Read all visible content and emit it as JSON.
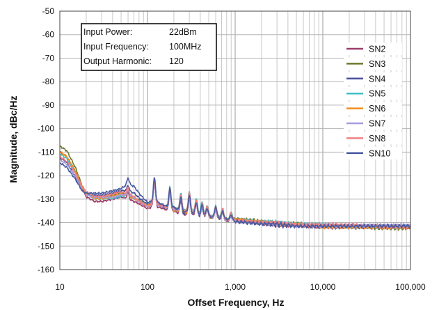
{
  "chart_data": {
    "type": "line",
    "title": "",
    "xlabel": "Offset Frequency, Hz",
    "ylabel": "Magnitude, dBc/Hz",
    "x_scale": "log",
    "xlim": [
      10,
      100000
    ],
    "ylim": [
      -160,
      -50
    ],
    "x_ticks": [
      {
        "value": 10,
        "label": "10"
      },
      {
        "value": 100,
        "label": "100"
      },
      {
        "value": 1000,
        "label": "1,000"
      },
      {
        "value": 10000,
        "label": "10,000"
      },
      {
        "value": 100000,
        "label": "100,000"
      }
    ],
    "y_ticks": [
      {
        "value": -50,
        "label": "-50"
      },
      {
        "value": -60,
        "label": "-60"
      },
      {
        "value": -70,
        "label": "-70"
      },
      {
        "value": -80,
        "label": "-80"
      },
      {
        "value": -90,
        "label": "-90"
      },
      {
        "value": -100,
        "label": "-100"
      },
      {
        "value": -110,
        "label": "-110"
      },
      {
        "value": -120,
        "label": "-120"
      },
      {
        "value": -130,
        "label": "-130"
      },
      {
        "value": -140,
        "label": "-140"
      },
      {
        "value": -150,
        "label": "-150"
      },
      {
        "value": -160,
        "label": "-160"
      }
    ],
    "grid": true,
    "legend_position": "right",
    "annotation": [
      {
        "label": "Input Power:",
        "value": "22dBm"
      },
      {
        "label": "Input Frequency:",
        "value": "100MHz"
      },
      {
        "label": "Output Harmonic:",
        "value": "120"
      }
    ],
    "series": [
      {
        "name": "SN2",
        "color": "#9c3d6a",
        "offset": 0.0,
        "x": [
          10,
          12,
          15,
          18,
          20,
          25,
          30,
          40,
          50,
          60,
          70,
          80,
          100,
          120,
          150,
          180,
          200,
          250,
          300,
          350,
          400,
          500,
          600,
          700,
          800,
          1000,
          2000,
          3000,
          5000,
          10000,
          20000,
          50000,
          100000
        ],
        "y": [
          -110,
          -112,
          -118,
          -126,
          -129,
          -131,
          -131,
          -130,
          -129,
          -130,
          -131,
          -132,
          -134,
          -133,
          -134,
          -135,
          -135,
          -137,
          -136,
          -137,
          -137,
          -138,
          -138,
          -139,
          -139,
          -139,
          -140,
          -141,
          -141,
          -142,
          -142,
          -142,
          -142
        ]
      },
      {
        "name": "SN3",
        "color": "#6b7a2a",
        "offset": 0.6,
        "x": [
          10,
          12,
          15,
          18,
          20,
          25,
          30,
          40,
          50,
          60,
          70,
          80,
          100,
          120,
          150,
          180,
          200,
          250,
          300,
          350,
          400,
          500,
          600,
          700,
          800,
          1000,
          2000,
          3000,
          5000,
          10000,
          20000,
          50000,
          100000
        ],
        "y": [
          -108,
          -110,
          -117,
          -125,
          -128,
          -130,
          -130,
          -129,
          -128,
          -129,
          -130,
          -131,
          -133,
          -132,
          -133,
          -134,
          -134,
          -136,
          -135,
          -136,
          -137,
          -138,
          -138,
          -138,
          -139,
          -139,
          -140,
          -141,
          -141,
          -142,
          -142,
          -143,
          -143
        ]
      },
      {
        "name": "SN4",
        "color": "#4a4f9a",
        "offset": -0.4,
        "x": [
          10,
          12,
          15,
          18,
          20,
          25,
          30,
          40,
          50,
          60,
          70,
          80,
          100,
          120,
          150,
          180,
          200,
          250,
          300,
          350,
          400,
          500,
          600,
          700,
          800,
          1000,
          2000,
          3000,
          5000,
          10000,
          20000,
          50000,
          100000
        ],
        "y": [
          -112,
          -114,
          -120,
          -126,
          -127,
          -128,
          -128,
          -127,
          -126,
          -126,
          -127,
          -129,
          -132,
          -131,
          -133,
          -134,
          -134,
          -136,
          -135,
          -136,
          -137,
          -137,
          -138,
          -138,
          -139,
          -139,
          -140,
          -141,
          -141,
          -141,
          -141,
          -141,
          -141
        ]
      },
      {
        "name": "SN5",
        "color": "#3fbfc4",
        "offset": 0.3,
        "x": [
          10,
          12,
          15,
          18,
          20,
          25,
          30,
          40,
          50,
          60,
          70,
          80,
          100,
          120,
          150,
          180,
          200,
          250,
          300,
          350,
          400,
          500,
          600,
          700,
          800,
          1000,
          2000,
          3000,
          5000,
          10000,
          20000,
          50000,
          100000
        ],
        "y": [
          -111,
          -113,
          -119,
          -126,
          -128,
          -130,
          -130,
          -130,
          -129,
          -129,
          -130,
          -131,
          -133,
          -132,
          -133,
          -134,
          -134,
          -135,
          -135,
          -136,
          -136,
          -137,
          -138,
          -138,
          -139,
          -139,
          -140,
          -140,
          -141,
          -141,
          -142,
          -142,
          -142
        ]
      },
      {
        "name": "SN6",
        "color": "#f28e1e",
        "offset": 0.2,
        "x": [
          10,
          12,
          15,
          18,
          20,
          25,
          30,
          40,
          50,
          60,
          70,
          80,
          100,
          120,
          150,
          180,
          200,
          250,
          300,
          350,
          400,
          500,
          600,
          700,
          800,
          1000,
          2000,
          3000,
          5000,
          10000,
          20000,
          50000,
          100000
        ],
        "y": [
          -110,
          -112,
          -118,
          -125,
          -128,
          -130,
          -130,
          -129,
          -128,
          -129,
          -130,
          -131,
          -133,
          -132,
          -133,
          -134,
          -135,
          -136,
          -136,
          -136,
          -137,
          -138,
          -138,
          -139,
          -139,
          -139,
          -140,
          -141,
          -141,
          -142,
          -142,
          -142,
          -142
        ]
      },
      {
        "name": "SN7",
        "color": "#a59ce0",
        "offset": -0.2,
        "x": [
          10,
          12,
          15,
          18,
          20,
          25,
          30,
          40,
          50,
          60,
          70,
          80,
          100,
          120,
          150,
          180,
          200,
          250,
          300,
          350,
          400,
          500,
          600,
          700,
          800,
          1000,
          2000,
          3000,
          5000,
          10000,
          20000,
          50000,
          100000
        ],
        "y": [
          -113,
          -115,
          -120,
          -126,
          -128,
          -129,
          -129,
          -129,
          -128,
          -128,
          -129,
          -131,
          -133,
          -132,
          -133,
          -134,
          -134,
          -135,
          -135,
          -136,
          -137,
          -137,
          -138,
          -138,
          -139,
          -139,
          -140,
          -140,
          -141,
          -141,
          -141,
          -141,
          -141
        ]
      },
      {
        "name": "SN8",
        "color": "#f08080",
        "offset": 0.1,
        "x": [
          10,
          12,
          15,
          18,
          20,
          25,
          30,
          40,
          50,
          60,
          70,
          80,
          100,
          120,
          150,
          180,
          200,
          250,
          300,
          350,
          400,
          500,
          600,
          700,
          800,
          1000,
          2000,
          3000,
          5000,
          10000,
          20000,
          50000,
          100000
        ],
        "y": [
          -112,
          -114,
          -119,
          -125,
          -127,
          -129,
          -129,
          -128,
          -127,
          -128,
          -129,
          -131,
          -133,
          -132,
          -133,
          -134,
          -134,
          -135,
          -135,
          -136,
          -137,
          -137,
          -138,
          -138,
          -139,
          -139,
          -140,
          -140,
          -141,
          -141,
          -141,
          -142,
          -142
        ]
      },
      {
        "name": "SN10",
        "color": "#4a5aa0",
        "offset": -0.5,
        "x": [
          10,
          12,
          15,
          18,
          20,
          25,
          30,
          40,
          50,
          60,
          70,
          80,
          100,
          120,
          150,
          180,
          200,
          250,
          300,
          350,
          400,
          500,
          600,
          700,
          800,
          1000,
          2000,
          3000,
          5000,
          10000,
          20000,
          50000,
          100000
        ],
        "y": [
          -114,
          -116,
          -121,
          -126,
          -127,
          -127,
          -127,
          -126,
          -125,
          -123,
          -124,
          -127,
          -131,
          -130,
          -132,
          -133,
          -133,
          -135,
          -135,
          -136,
          -136,
          -137,
          -137,
          -138,
          -138,
          -139,
          -140,
          -140,
          -141,
          -141,
          -141,
          -141,
          -141
        ]
      }
    ],
    "spurs": [
      {
        "x": 60,
        "depth": 3
      },
      {
        "x": 120,
        "depth": 11
      },
      {
        "x": 180,
        "depth": 9
      },
      {
        "x": 240,
        "depth": 7
      },
      {
        "x": 300,
        "depth": 8
      },
      {
        "x": 360,
        "depth": 6
      },
      {
        "x": 420,
        "depth": 5
      },
      {
        "x": 480,
        "depth": 4
      },
      {
        "x": 600,
        "depth": 5
      },
      {
        "x": 720,
        "depth": 4
      },
      {
        "x": 900,
        "depth": 3
      }
    ]
  }
}
